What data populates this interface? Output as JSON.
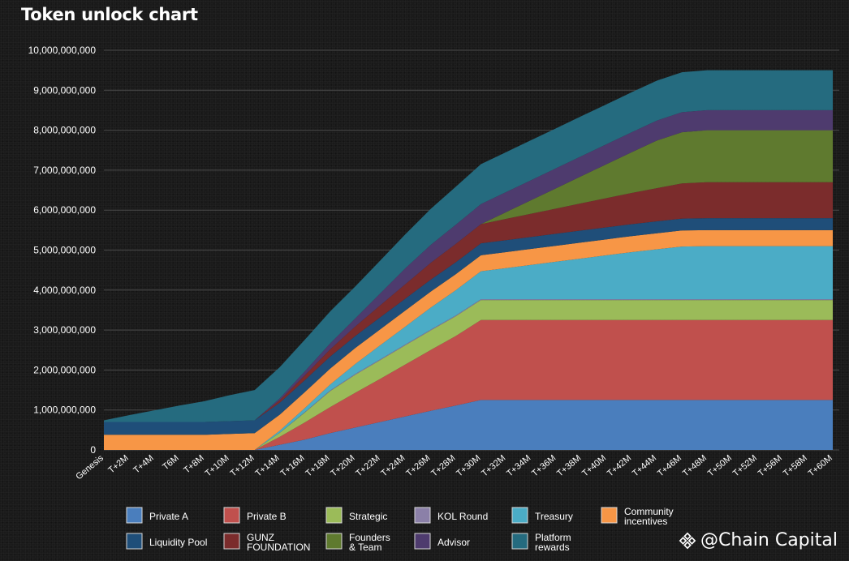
{
  "title": "Token unlock chart",
  "watermark": {
    "text": "@Chain Capital",
    "icon": "binance-diamond-icon"
  },
  "chart_data": {
    "type": "area",
    "stacked": true,
    "title": "Token unlock chart",
    "xlabel": "",
    "ylabel": "",
    "ylim": [
      0,
      10000000000
    ],
    "y_ticks": [
      0,
      1000000000,
      2000000000,
      3000000000,
      4000000000,
      5000000000,
      6000000000,
      7000000000,
      8000000000,
      9000000000,
      10000000000
    ],
    "y_tick_labels": [
      "0",
      "1,000,000,000",
      "2,000,000,000",
      "3,000,000,000",
      "4,000,000,000",
      "5,000,000,000",
      "6,000,000,000",
      "7,000,000,000",
      "8,000,000,000",
      "9,000,000,000",
      "10,000,000,000"
    ],
    "grid": true,
    "legend_position": "bottom",
    "categories": [
      "Genesis",
      "T+2M",
      "T+4M",
      "T6M",
      "T+8M",
      "T+10M",
      "T+12M",
      "T+14M",
      "T+16M",
      "T+18M",
      "T+20M",
      "T+22M",
      "T+24M",
      "T+26M",
      "T+28M",
      "T+30M",
      "T+32M",
      "T+34M",
      "T+36M",
      "T+38M",
      "T+40M",
      "T+42M",
      "T+44M",
      "T+46M",
      "T+48M",
      "T+50M",
      "T+52M",
      "T+56M",
      "T+58M",
      "T+60M"
    ],
    "series": [
      {
        "name": "Private A",
        "color": "#4a7ebd",
        "values": [
          0,
          0,
          0,
          0,
          0,
          0,
          0,
          130000000,
          260000000,
          420000000,
          560000000,
          700000000,
          840000000,
          980000000,
          1110000000,
          1250000000,
          1250000000,
          1250000000,
          1250000000,
          1250000000,
          1250000000,
          1250000000,
          1250000000,
          1250000000,
          1250000000,
          1250000000,
          1250000000,
          1250000000,
          1250000000,
          1250000000
        ]
      },
      {
        "name": "Private B",
        "color": "#c0504d",
        "values": [
          0,
          0,
          0,
          0,
          0,
          0,
          0,
          200000000,
          430000000,
          650000000,
          870000000,
          1080000000,
          1300000000,
          1520000000,
          1740000000,
          2000000000,
          2000000000,
          2000000000,
          2000000000,
          2000000000,
          2000000000,
          2000000000,
          2000000000,
          2000000000,
          2000000000,
          2000000000,
          2000000000,
          2000000000,
          2000000000,
          2000000000
        ]
      },
      {
        "name": "Strategic",
        "color": "#9bbb59",
        "values": [
          0,
          0,
          0,
          0,
          0,
          0,
          0,
          100000000,
          250000000,
          400000000,
          450000000,
          470000000,
          480000000,
          490000000,
          495000000,
          500000000,
          500000000,
          500000000,
          500000000,
          500000000,
          500000000,
          500000000,
          500000000,
          500000000,
          500000000,
          500000000,
          500000000,
          500000000,
          500000000,
          500000000
        ]
      },
      {
        "name": "KOL Round",
        "color": "#8b80a8",
        "values": [
          0,
          0,
          0,
          0,
          0,
          0,
          0,
          5000000,
          10000000,
          15000000,
          20000000,
          20000000,
          20000000,
          20000000,
          20000000,
          20000000,
          20000000,
          20000000,
          20000000,
          20000000,
          20000000,
          20000000,
          20000000,
          20000000,
          20000000,
          20000000,
          20000000,
          20000000,
          20000000,
          20000000
        ]
      },
      {
        "name": "Treasury",
        "color": "#4bacc6",
        "values": [
          0,
          0,
          0,
          0,
          0,
          0,
          0,
          50000000,
          100000000,
          150000000,
          250000000,
          350000000,
          450000000,
          550000000,
          630000000,
          700000000,
          780000000,
          860000000,
          940000000,
          1020000000,
          1100000000,
          1180000000,
          1250000000,
          1320000000,
          1330000000,
          1330000000,
          1330000000,
          1330000000,
          1330000000,
          1330000000
        ]
      },
      {
        "name": "Community incentives",
        "color": "#f79646",
        "values": [
          380000000,
          380000000,
          380000000,
          380000000,
          380000000,
          400000000,
          420000000,
          400000000,
          400000000,
          400000000,
          400000000,
          400000000,
          400000000,
          400000000,
          400000000,
          400000000,
          400000000,
          400000000,
          400000000,
          400000000,
          400000000,
          400000000,
          400000000,
          400000000,
          400000000,
          400000000,
          400000000,
          400000000,
          400000000,
          400000000
        ]
      },
      {
        "name": "Liquidity Pool",
        "color": "#1f4e79",
        "values": [
          320000000,
          320000000,
          320000000,
          320000000,
          320000000,
          320000000,
          320000000,
          300000000,
          300000000,
          300000000,
          300000000,
          300000000,
          300000000,
          300000000,
          300000000,
          300000000,
          300000000,
          300000000,
          300000000,
          300000000,
          300000000,
          300000000,
          300000000,
          300000000,
          300000000,
          300000000,
          300000000,
          300000000,
          300000000,
          300000000
        ]
      },
      {
        "name": "GUNZ FOUNDATION",
        "color": "#7b2c2c",
        "values": [
          0,
          0,
          0,
          0,
          0,
          0,
          0,
          60000000,
          120000000,
          180000000,
          240000000,
          300000000,
          360000000,
          420000000,
          460000000,
          480000000,
          530000000,
          580000000,
          630000000,
          680000000,
          730000000,
          780000000,
          830000000,
          880000000,
          900000000,
          900000000,
          900000000,
          900000000,
          900000000,
          900000000
        ]
      },
      {
        "name": "Founders & Team",
        "color": "#5f7a2f",
        "values": [
          0,
          0,
          0,
          0,
          0,
          0,
          0,
          0,
          0,
          0,
          0,
          0,
          0,
          0,
          0,
          0,
          170000000,
          340000000,
          510000000,
          680000000,
          850000000,
          1020000000,
          1190000000,
          1280000000,
          1300000000,
          1300000000,
          1300000000,
          1300000000,
          1300000000,
          1300000000
        ]
      },
      {
        "name": "Advisor",
        "color": "#4e3b6e",
        "values": [
          0,
          0,
          0,
          0,
          0,
          0,
          0,
          50000000,
          100000000,
          150000000,
          200000000,
          300000000,
          400000000,
          450000000,
          480000000,
          500000000,
          500000000,
          500000000,
          500000000,
          500000000,
          500000000,
          500000000,
          500000000,
          500000000,
          500000000,
          500000000,
          500000000,
          500000000,
          500000000,
          500000000
        ]
      },
      {
        "name": "Platform rewards",
        "color": "#256b7f",
        "values": [
          40000000,
          170000000,
          290000000,
          410000000,
          520000000,
          650000000,
          760000000,
          780000000,
          790000000,
          800000000,
          800000000,
          820000000,
          850000000,
          900000000,
          950000000,
          1000000000,
          1000000000,
          1000000000,
          1000000000,
          1000000000,
          1000000000,
          1000000000,
          1000000000,
          1000000000,
          1000000000,
          1000000000,
          1000000000,
          1000000000,
          1000000000,
          1000000000
        ]
      }
    ]
  }
}
